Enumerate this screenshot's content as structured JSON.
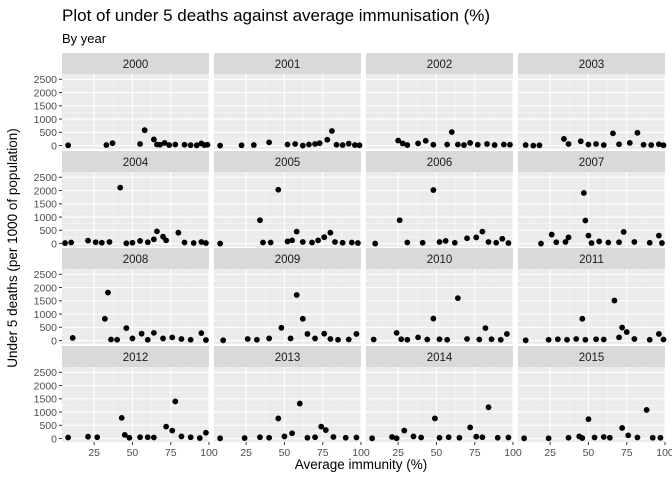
{
  "chart_data": {
    "type": "scatter",
    "title": "Plot of under 5 deaths against average immunisation (%)",
    "subtitle": "By year",
    "xlabel": "Average immunity (%)",
    "ylabel": "Under 5 deaths (per 1000 of population)",
    "xlim": [
      4,
      100
    ],
    "ylim": [
      -130,
      2700
    ],
    "x_ticks": [
      25,
      50,
      75,
      100
    ],
    "x_tick_labels": [
      "25",
      "50",
      "75",
      "100"
    ],
    "y_ticks": [
      0,
      500,
      1000,
      1500,
      2000,
      2500
    ],
    "y_tick_labels": [
      "0",
      "500",
      "1000",
      "1500",
      "2000",
      "2500"
    ],
    "grid": true,
    "panels": [
      {
        "year": "2000",
        "points": [
          [
            8,
            10
          ],
          [
            33,
            20
          ],
          [
            37,
            90
          ],
          [
            55,
            60
          ],
          [
            58,
            580
          ],
          [
            64,
            230
          ],
          [
            66,
            40
          ],
          [
            68,
            30
          ],
          [
            71,
            100
          ],
          [
            74,
            20
          ],
          [
            78,
            40
          ],
          [
            84,
            30
          ],
          [
            88,
            15
          ],
          [
            92,
            10
          ],
          [
            95,
            80
          ],
          [
            97,
            20
          ],
          [
            99,
            30
          ]
        ]
      },
      {
        "year": "2001",
        "points": [
          [
            8,
            0
          ],
          [
            22,
            10
          ],
          [
            30,
            20
          ],
          [
            40,
            120
          ],
          [
            52,
            40
          ],
          [
            57,
            60
          ],
          [
            62,
            0
          ],
          [
            66,
            40
          ],
          [
            70,
            60
          ],
          [
            73,
            90
          ],
          [
            78,
            220
          ],
          [
            81,
            550
          ],
          [
            84,
            30
          ],
          [
            88,
            20
          ],
          [
            92,
            70
          ],
          [
            96,
            20
          ],
          [
            99,
            10
          ]
        ]
      },
      {
        "year": "2002",
        "points": [
          [
            25,
            190
          ],
          [
            28,
            80
          ],
          [
            31,
            20
          ],
          [
            38,
            80
          ],
          [
            43,
            180
          ],
          [
            48,
            30
          ],
          [
            57,
            40
          ],
          [
            60,
            510
          ],
          [
            64,
            40
          ],
          [
            68,
            20
          ],
          [
            72,
            100
          ],
          [
            77,
            30
          ],
          [
            83,
            60
          ],
          [
            88,
            20
          ],
          [
            94,
            40
          ],
          [
            98,
            30
          ]
        ]
      },
      {
        "year": "2003",
        "points": [
          [
            9,
            20
          ],
          [
            14,
            0
          ],
          [
            18,
            10
          ],
          [
            34,
            250
          ],
          [
            37,
            60
          ],
          [
            45,
            160
          ],
          [
            50,
            40
          ],
          [
            55,
            60
          ],
          [
            60,
            20
          ],
          [
            66,
            460
          ],
          [
            70,
            50
          ],
          [
            77,
            100
          ],
          [
            82,
            480
          ],
          [
            86,
            30
          ],
          [
            91,
            20
          ],
          [
            96,
            50
          ],
          [
            99,
            10
          ]
        ]
      },
      {
        "year": "2004",
        "points": [
          [
            6,
            20
          ],
          [
            10,
            40
          ],
          [
            21,
            110
          ],
          [
            26,
            50
          ],
          [
            30,
            30
          ],
          [
            35,
            60
          ],
          [
            42,
            2110
          ],
          [
            46,
            10
          ],
          [
            50,
            30
          ],
          [
            55,
            100
          ],
          [
            60,
            50
          ],
          [
            64,
            160
          ],
          [
            66,
            460
          ],
          [
            70,
            260
          ],
          [
            72,
            120
          ],
          [
            80,
            410
          ],
          [
            84,
            40
          ],
          [
            90,
            20
          ],
          [
            95,
            60
          ],
          [
            98,
            20
          ]
        ]
      },
      {
        "year": "2005",
        "points": [
          [
            8,
            0
          ],
          [
            34,
            880
          ],
          [
            36,
            40
          ],
          [
            41,
            40
          ],
          [
            46,
            2030
          ],
          [
            52,
            80
          ],
          [
            55,
            120
          ],
          [
            58,
            450
          ],
          [
            62,
            60
          ],
          [
            68,
            40
          ],
          [
            72,
            120
          ],
          [
            76,
            240
          ],
          [
            80,
            410
          ],
          [
            83,
            60
          ],
          [
            88,
            30
          ],
          [
            94,
            40
          ],
          [
            98,
            20
          ]
        ]
      },
      {
        "year": "2006",
        "points": [
          [
            10,
            0
          ],
          [
            26,
            880
          ],
          [
            31,
            40
          ],
          [
            41,
            30
          ],
          [
            48,
            2020
          ],
          [
            52,
            60
          ],
          [
            56,
            100
          ],
          [
            62,
            30
          ],
          [
            70,
            200
          ],
          [
            76,
            230
          ],
          [
            80,
            450
          ],
          [
            84,
            60
          ],
          [
            89,
            30
          ],
          [
            93,
            180
          ],
          [
            97,
            20
          ]
        ]
      },
      {
        "year": "2007",
        "points": [
          [
            19,
            0
          ],
          [
            26,
            340
          ],
          [
            29,
            50
          ],
          [
            35,
            60
          ],
          [
            37,
            230
          ],
          [
            47,
            1910
          ],
          [
            48,
            870
          ],
          [
            50,
            300
          ],
          [
            52,
            20
          ],
          [
            57,
            80
          ],
          [
            63,
            40
          ],
          [
            70,
            50
          ],
          [
            73,
            440
          ],
          [
            80,
            60
          ],
          [
            90,
            30
          ],
          [
            96,
            300
          ],
          [
            98,
            20
          ]
        ]
      },
      {
        "year": "2008",
        "points": [
          [
            11,
            100
          ],
          [
            32,
            820
          ],
          [
            34,
            1810
          ],
          [
            36,
            40
          ],
          [
            40,
            30
          ],
          [
            46,
            470
          ],
          [
            50,
            80
          ],
          [
            56,
            260
          ],
          [
            60,
            30
          ],
          [
            64,
            290
          ],
          [
            70,
            80
          ],
          [
            76,
            120
          ],
          [
            82,
            60
          ],
          [
            88,
            30
          ],
          [
            95,
            280
          ],
          [
            98,
            20
          ]
        ]
      },
      {
        "year": "2009",
        "points": [
          [
            10,
            10
          ],
          [
            26,
            60
          ],
          [
            32,
            30
          ],
          [
            40,
            80
          ],
          [
            48,
            480
          ],
          [
            54,
            80
          ],
          [
            58,
            1720
          ],
          [
            62,
            820
          ],
          [
            65,
            250
          ],
          [
            70,
            80
          ],
          [
            76,
            260
          ],
          [
            80,
            60
          ],
          [
            85,
            30
          ],
          [
            92,
            40
          ],
          [
            97,
            250
          ]
        ]
      },
      {
        "year": "2010",
        "points": [
          [
            9,
            40
          ],
          [
            24,
            290
          ],
          [
            27,
            50
          ],
          [
            31,
            30
          ],
          [
            38,
            120
          ],
          [
            44,
            40
          ],
          [
            48,
            830
          ],
          [
            52,
            50
          ],
          [
            57,
            30
          ],
          [
            64,
            1600
          ],
          [
            70,
            60
          ],
          [
            78,
            40
          ],
          [
            82,
            470
          ],
          [
            86,
            50
          ],
          [
            92,
            30
          ],
          [
            96,
            250
          ]
        ]
      },
      {
        "year": "2011",
        "points": [
          [
            9,
            10
          ],
          [
            24,
            30
          ],
          [
            30,
            50
          ],
          [
            36,
            30
          ],
          [
            42,
            60
          ],
          [
            46,
            820
          ],
          [
            48,
            30
          ],
          [
            55,
            50
          ],
          [
            60,
            40
          ],
          [
            67,
            1510
          ],
          [
            70,
            120
          ],
          [
            72,
            490
          ],
          [
            75,
            320
          ],
          [
            80,
            60
          ],
          [
            90,
            30
          ],
          [
            96,
            250
          ],
          [
            99,
            40
          ]
        ]
      },
      {
        "year": "2012",
        "points": [
          [
            8,
            40
          ],
          [
            21,
            70
          ],
          [
            27,
            50
          ],
          [
            43,
            780
          ],
          [
            45,
            140
          ],
          [
            48,
            30
          ],
          [
            55,
            50
          ],
          [
            60,
            50
          ],
          [
            64,
            40
          ],
          [
            72,
            450
          ],
          [
            76,
            300
          ],
          [
            78,
            1400
          ],
          [
            82,
            80
          ],
          [
            88,
            50
          ],
          [
            94,
            20
          ],
          [
            98,
            220
          ]
        ]
      },
      {
        "year": "2013",
        "points": [
          [
            8,
            10
          ],
          [
            24,
            20
          ],
          [
            34,
            50
          ],
          [
            40,
            30
          ],
          [
            46,
            760
          ],
          [
            50,
            80
          ],
          [
            55,
            200
          ],
          [
            60,
            1320
          ],
          [
            65,
            30
          ],
          [
            70,
            50
          ],
          [
            74,
            450
          ],
          [
            77,
            320
          ],
          [
            82,
            60
          ],
          [
            90,
            30
          ],
          [
            97,
            40
          ]
        ]
      },
      {
        "year": "2014",
        "points": [
          [
            8,
            10
          ],
          [
            21,
            60
          ],
          [
            24,
            10
          ],
          [
            29,
            300
          ],
          [
            35,
            80
          ],
          [
            40,
            40
          ],
          [
            49,
            760
          ],
          [
            52,
            30
          ],
          [
            58,
            50
          ],
          [
            65,
            30
          ],
          [
            72,
            420
          ],
          [
            76,
            70
          ],
          [
            80,
            50
          ],
          [
            84,
            1180
          ],
          [
            90,
            30
          ],
          [
            97,
            40
          ]
        ]
      },
      {
        "year": "2015",
        "points": [
          [
            8,
            10
          ],
          [
            24,
            10
          ],
          [
            37,
            30
          ],
          [
            44,
            80
          ],
          [
            46,
            20
          ],
          [
            50,
            730
          ],
          [
            54,
            40
          ],
          [
            60,
            60
          ],
          [
            64,
            30
          ],
          [
            72,
            400
          ],
          [
            76,
            120
          ],
          [
            82,
            40
          ],
          [
            88,
            1080
          ],
          [
            92,
            30
          ],
          [
            97,
            30
          ]
        ]
      }
    ]
  }
}
